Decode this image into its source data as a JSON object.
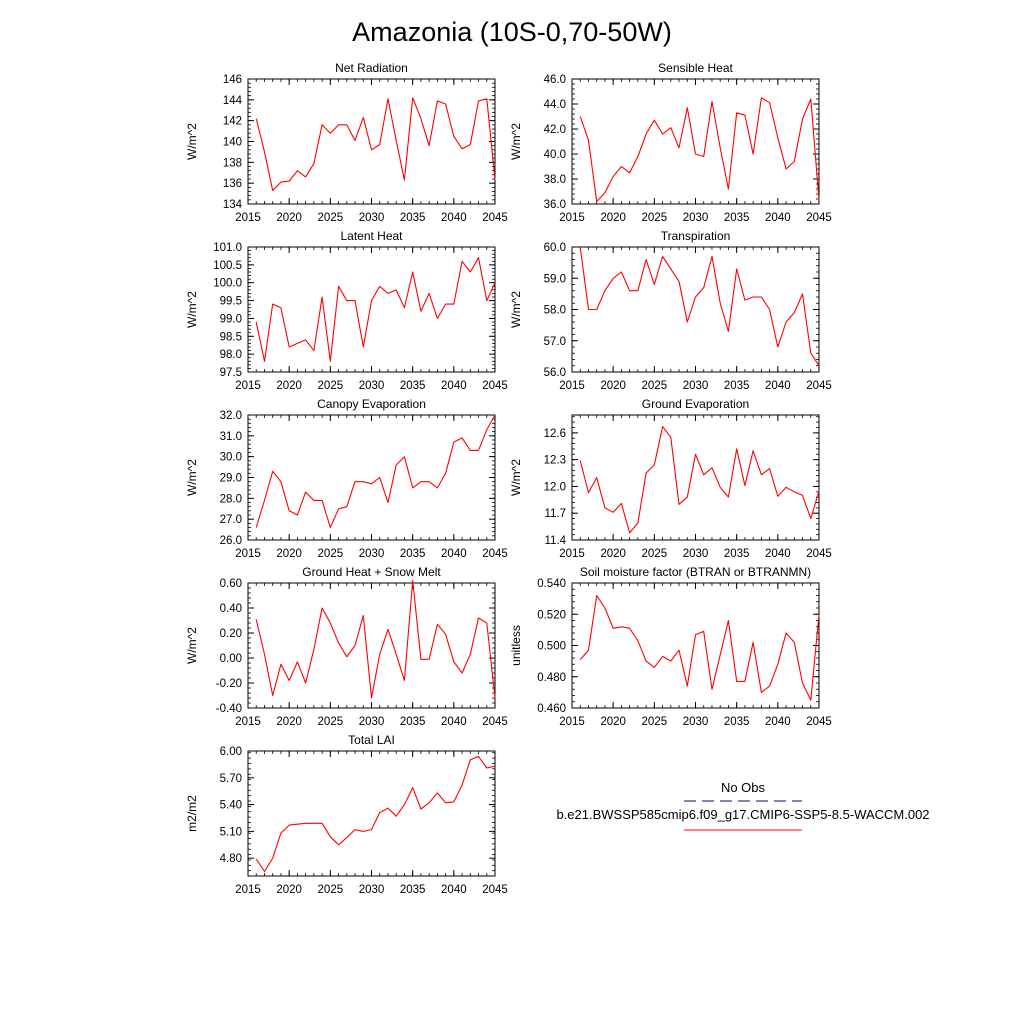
{
  "figure": {
    "title": "Amazonia (10S-0,70-50W)"
  },
  "legend": {
    "obs_label": "No Obs",
    "model_label": "b.e21.BWSSP585cmip6.f09_g17.CMIP6-SSP5-8.5-WACCM.002",
    "obs_color": "#3a3a9a",
    "model_color": "#ff0000"
  },
  "chart_data": [
    {
      "type": "line",
      "title": "Net Radiation",
      "ylabel": "W/m^2",
      "xlim": [
        2015,
        2045
      ],
      "ylim": [
        134,
        146
      ],
      "yticks": [
        134,
        136,
        138,
        140,
        142,
        144,
        146
      ],
      "ytick_labels": [
        "134",
        "136",
        "138",
        "140",
        "142",
        "144",
        "146"
      ],
      "xticks": [
        2015,
        2020,
        2025,
        2030,
        2035,
        2040,
        2045
      ],
      "xtick_labels": [
        "2015",
        "2020",
        "2025",
        "2030",
        "2035",
        "2040",
        "2045"
      ],
      "series": [
        {
          "color": "#ff0000",
          "x": [
            2016,
            2017,
            2018,
            2019,
            2020,
            2021,
            2022,
            2023,
            2024,
            2025,
            2026,
            2027,
            2028,
            2029,
            2030,
            2031,
            2032,
            2033,
            2034,
            2035,
            2036,
            2037,
            2038,
            2039,
            2040,
            2041,
            2042,
            2043,
            2044,
            2045
          ],
          "values": [
            142.2,
            139.0,
            135.3,
            136.1,
            136.2,
            137.2,
            136.6,
            137.9,
            141.6,
            140.8,
            141.6,
            141.6,
            140.1,
            142.3,
            139.2,
            139.7,
            144.1,
            140.1,
            136.3,
            144.2,
            142.2,
            139.6,
            143.9,
            143.6,
            140.5,
            139.3,
            139.7,
            143.9,
            144.1,
            136.3
          ]
        }
      ]
    },
    {
      "type": "line",
      "title": "Sensible Heat",
      "ylabel": "W/m^2",
      "xlim": [
        2015,
        2045
      ],
      "ylim": [
        36,
        46
      ],
      "yticks": [
        36,
        38,
        40,
        42,
        44,
        46
      ],
      "ytick_labels": [
        "36.0",
        "38.0",
        "40.0",
        "42.0",
        "44.0",
        "46.0"
      ],
      "xticks": [
        2015,
        2020,
        2025,
        2030,
        2035,
        2040,
        2045
      ],
      "xtick_labels": [
        "2015",
        "2020",
        "2025",
        "2030",
        "2035",
        "2040",
        "2045"
      ],
      "series": [
        {
          "color": "#ff0000",
          "x": [
            2016,
            2017,
            2018,
            2019,
            2020,
            2021,
            2022,
            2023,
            2024,
            2025,
            2026,
            2027,
            2028,
            2029,
            2030,
            2031,
            2032,
            2033,
            2034,
            2035,
            2036,
            2037,
            2038,
            2039,
            2040,
            2041,
            2042,
            2043,
            2044,
            2045
          ],
          "values": [
            43.0,
            41.1,
            36.2,
            36.9,
            38.2,
            39.0,
            38.5,
            39.8,
            41.6,
            42.7,
            41.6,
            42.1,
            40.5,
            43.7,
            40.0,
            39.8,
            44.2,
            40.5,
            37.2,
            43.3,
            43.1,
            40.0,
            44.5,
            44.1,
            41.3,
            38.8,
            39.4,
            42.8,
            44.4,
            36.3
          ]
        }
      ]
    },
    {
      "type": "line",
      "title": "Latent Heat",
      "ylabel": "W/m^2",
      "xlim": [
        2015,
        2045
      ],
      "ylim": [
        97.5,
        101.0
      ],
      "yticks": [
        97.5,
        98.0,
        98.5,
        99.0,
        99.5,
        100.0,
        100.5,
        101.0
      ],
      "ytick_labels": [
        "97.5",
        "98.0",
        "98.5",
        "99.0",
        "99.5",
        "100.0",
        "100.5",
        "101.0"
      ],
      "xticks": [
        2015,
        2020,
        2025,
        2030,
        2035,
        2040,
        2045
      ],
      "xtick_labels": [
        "2015",
        "2020",
        "2025",
        "2030",
        "2035",
        "2040",
        "2045"
      ],
      "series": [
        {
          "color": "#ff0000",
          "x": [
            2016,
            2017,
            2018,
            2019,
            2020,
            2021,
            2022,
            2023,
            2024,
            2025,
            2026,
            2027,
            2028,
            2029,
            2030,
            2031,
            2032,
            2033,
            2034,
            2035,
            2036,
            2037,
            2038,
            2039,
            2040,
            2041,
            2042,
            2043,
            2044,
            2045
          ],
          "values": [
            98.9,
            97.8,
            99.4,
            99.3,
            98.2,
            98.3,
            98.4,
            98.1,
            99.6,
            97.8,
            99.9,
            99.5,
            99.5,
            98.2,
            99.5,
            99.9,
            99.7,
            99.8,
            99.3,
            100.3,
            99.2,
            99.7,
            99.0,
            99.4,
            99.4,
            100.6,
            100.3,
            100.7,
            99.5,
            100.0
          ]
        }
      ]
    },
    {
      "type": "line",
      "title": "Transpiration",
      "ylabel": "W/m^2",
      "xlim": [
        2015,
        2045
      ],
      "ylim": [
        56,
        60
      ],
      "yticks": [
        56,
        57,
        58,
        59,
        60
      ],
      "ytick_labels": [
        "56.0",
        "57.0",
        "58.0",
        "59.0",
        "60.0"
      ],
      "xticks": [
        2015,
        2020,
        2025,
        2030,
        2035,
        2040,
        2045
      ],
      "xtick_labels": [
        "2015",
        "2020",
        "2025",
        "2030",
        "2035",
        "2040",
        "2045"
      ],
      "series": [
        {
          "color": "#ff0000",
          "x": [
            2016,
            2017,
            2018,
            2019,
            2020,
            2021,
            2022,
            2023,
            2024,
            2025,
            2026,
            2027,
            2028,
            2029,
            2030,
            2031,
            2032,
            2033,
            2034,
            2035,
            2036,
            2037,
            2038,
            2039,
            2040,
            2041,
            2042,
            2043,
            2044,
            2045
          ],
          "values": [
            60.0,
            58.0,
            58.0,
            58.6,
            59.0,
            59.2,
            58.6,
            58.6,
            59.6,
            58.8,
            59.7,
            59.3,
            58.9,
            57.6,
            58.4,
            58.7,
            59.7,
            58.2,
            57.3,
            59.3,
            58.3,
            58.4,
            58.4,
            58.0,
            56.8,
            57.6,
            57.9,
            58.5,
            56.6,
            56.2
          ]
        }
      ]
    },
    {
      "type": "line",
      "title": "Canopy Evaporation",
      "ylabel": "W/m^2",
      "xlim": [
        2015,
        2045
      ],
      "ylim": [
        26,
        32
      ],
      "yticks": [
        26,
        27,
        28,
        29,
        30,
        31,
        32
      ],
      "ytick_labels": [
        "26.0",
        "27.0",
        "28.0",
        "29.0",
        "30.0",
        "31.0",
        "32.0"
      ],
      "xticks": [
        2015,
        2020,
        2025,
        2030,
        2035,
        2040,
        2045
      ],
      "xtick_labels": [
        "2015",
        "2020",
        "2025",
        "2030",
        "2035",
        "2040",
        "2045"
      ],
      "series": [
        {
          "color": "#ff0000",
          "x": [
            2016,
            2017,
            2018,
            2019,
            2020,
            2021,
            2022,
            2023,
            2024,
            2025,
            2026,
            2027,
            2028,
            2029,
            2030,
            2031,
            2032,
            2033,
            2034,
            2035,
            2036,
            2037,
            2038,
            2039,
            2040,
            2041,
            2042,
            2043,
            2044,
            2045
          ],
          "values": [
            26.6,
            27.9,
            29.3,
            28.8,
            27.4,
            27.2,
            28.3,
            27.9,
            27.9,
            26.6,
            27.5,
            27.6,
            28.8,
            28.8,
            28.7,
            29.0,
            27.8,
            29.6,
            30.0,
            28.5,
            28.8,
            28.8,
            28.5,
            29.2,
            30.7,
            30.9,
            30.3,
            30.3,
            31.3,
            32.0
          ]
        }
      ]
    },
    {
      "type": "line",
      "title": "Ground Evaporation",
      "ylabel": "W/m^2",
      "xlim": [
        2015,
        2045
      ],
      "ylim": [
        11.4,
        12.8
      ],
      "yticks": [
        11.4,
        11.7,
        12.0,
        12.3,
        12.6
      ],
      "ytick_labels": [
        "11.4",
        "11.7",
        "12.0",
        "12.3",
        "12.6"
      ],
      "xticks": [
        2015,
        2020,
        2025,
        2030,
        2035,
        2040,
        2045
      ],
      "xtick_labels": [
        "2015",
        "2020",
        "2025",
        "2030",
        "2035",
        "2040",
        "2045"
      ],
      "series": [
        {
          "color": "#ff0000",
          "x": [
            2016,
            2017,
            2018,
            2019,
            2020,
            2021,
            2022,
            2023,
            2024,
            2025,
            2026,
            2027,
            2028,
            2029,
            2030,
            2031,
            2032,
            2033,
            2034,
            2035,
            2036,
            2037,
            2038,
            2039,
            2040,
            2041,
            2042,
            2043,
            2044,
            2045
          ],
          "values": [
            12.29,
            11.93,
            12.1,
            11.76,
            11.71,
            11.81,
            11.48,
            11.59,
            12.15,
            12.24,
            12.67,
            12.55,
            11.8,
            11.88,
            12.36,
            12.13,
            12.21,
            11.99,
            11.88,
            12.42,
            12.01,
            12.4,
            12.13,
            12.2,
            11.89,
            11.99,
            11.94,
            11.9,
            11.64,
            11.95
          ]
        }
      ]
    },
    {
      "type": "line",
      "title": "Ground Heat + Snow Melt",
      "ylabel": "W/m^2",
      "xlim": [
        2015,
        2045
      ],
      "ylim": [
        -0.4,
        0.6
      ],
      "yticks": [
        -0.4,
        -0.2,
        0.0,
        0.2,
        0.4,
        0.6
      ],
      "ytick_labels": [
        "-0.40",
        "-0.20",
        "0.00",
        "0.20",
        "0.40",
        "0.60"
      ],
      "xticks": [
        2015,
        2020,
        2025,
        2030,
        2035,
        2040,
        2045
      ],
      "xtick_labels": [
        "2015",
        "2020",
        "2025",
        "2030",
        "2035",
        "2040",
        "2045"
      ],
      "series": [
        {
          "color": "#ff0000",
          "x": [
            2016,
            2017,
            2018,
            2019,
            2020,
            2021,
            2022,
            2023,
            2024,
            2025,
            2026,
            2027,
            2028,
            2029,
            2030,
            2031,
            2032,
            2033,
            2034,
            2035,
            2036,
            2037,
            2038,
            2039,
            2040,
            2041,
            2042,
            2043,
            2044,
            2045
          ],
          "values": [
            0.31,
            0.03,
            -0.3,
            -0.05,
            -0.18,
            -0.03,
            -0.2,
            0.07,
            0.4,
            0.28,
            0.12,
            0.01,
            0.1,
            0.34,
            -0.32,
            0.03,
            0.23,
            0.03,
            -0.18,
            0.62,
            -0.01,
            -0.01,
            0.27,
            0.19,
            -0.03,
            -0.12,
            0.03,
            0.32,
            0.28,
            -0.32
          ]
        }
      ]
    },
    {
      "type": "line",
      "title": "Soil moisture factor (BTRAN or BTRANMN)",
      "ylabel": "unitless",
      "xlim": [
        2015,
        2045
      ],
      "ylim": [
        0.46,
        0.54
      ],
      "yticks": [
        0.46,
        0.48,
        0.5,
        0.52,
        0.54
      ],
      "ytick_labels": [
        "0.460",
        "0.480",
        "0.500",
        "0.520",
        "0.540"
      ],
      "xticks": [
        2015,
        2020,
        2025,
        2030,
        2035,
        2040,
        2045
      ],
      "xtick_labels": [
        "2015",
        "2020",
        "2025",
        "2030",
        "2035",
        "2040",
        "2045"
      ],
      "series": [
        {
          "color": "#ff0000",
          "x": [
            2016,
            2017,
            2018,
            2019,
            2020,
            2021,
            2022,
            2023,
            2024,
            2025,
            2026,
            2027,
            2028,
            2029,
            2030,
            2031,
            2032,
            2033,
            2034,
            2035,
            2036,
            2037,
            2038,
            2039,
            2040,
            2041,
            2042,
            2043,
            2044,
            2045
          ],
          "values": [
            0.491,
            0.497,
            0.532,
            0.524,
            0.511,
            0.512,
            0.511,
            0.503,
            0.49,
            0.486,
            0.493,
            0.49,
            0.497,
            0.474,
            0.507,
            0.509,
            0.472,
            0.494,
            0.516,
            0.477,
            0.477,
            0.502,
            0.47,
            0.474,
            0.488,
            0.508,
            0.502,
            0.476,
            0.465,
            0.52
          ]
        }
      ]
    },
    {
      "type": "line",
      "title": "Total LAI",
      "ylabel": "m2/m2",
      "xlim": [
        2015,
        2045
      ],
      "ylim": [
        4.6,
        6.0
      ],
      "yticks": [
        4.8,
        5.1,
        5.4,
        5.7,
        6.0
      ],
      "ytick_labels": [
        "4.80",
        "5.10",
        "5.40",
        "5.70",
        "6.00"
      ],
      "xticks": [
        2015,
        2020,
        2025,
        2030,
        2035,
        2040,
        2045
      ],
      "xtick_labels": [
        "2015",
        "2020",
        "2025",
        "2030",
        "2035",
        "2040",
        "2045"
      ],
      "series": [
        {
          "color": "#ff0000",
          "x": [
            2016,
            2017,
            2018,
            2019,
            2020,
            2021,
            2022,
            2023,
            2024,
            2025,
            2026,
            2027,
            2028,
            2029,
            2030,
            2031,
            2032,
            2033,
            2034,
            2035,
            2036,
            2037,
            2038,
            2039,
            2040,
            2041,
            2042,
            2043,
            2044,
            2045
          ],
          "values": [
            4.79,
            4.65,
            4.8,
            5.08,
            5.17,
            5.18,
            5.19,
            5.19,
            5.19,
            5.04,
            4.95,
            5.03,
            5.12,
            5.1,
            5.12,
            5.31,
            5.36,
            5.27,
            5.4,
            5.59,
            5.35,
            5.42,
            5.53,
            5.42,
            5.43,
            5.62,
            5.9,
            5.94,
            5.81,
            5.83
          ]
        }
      ]
    }
  ]
}
